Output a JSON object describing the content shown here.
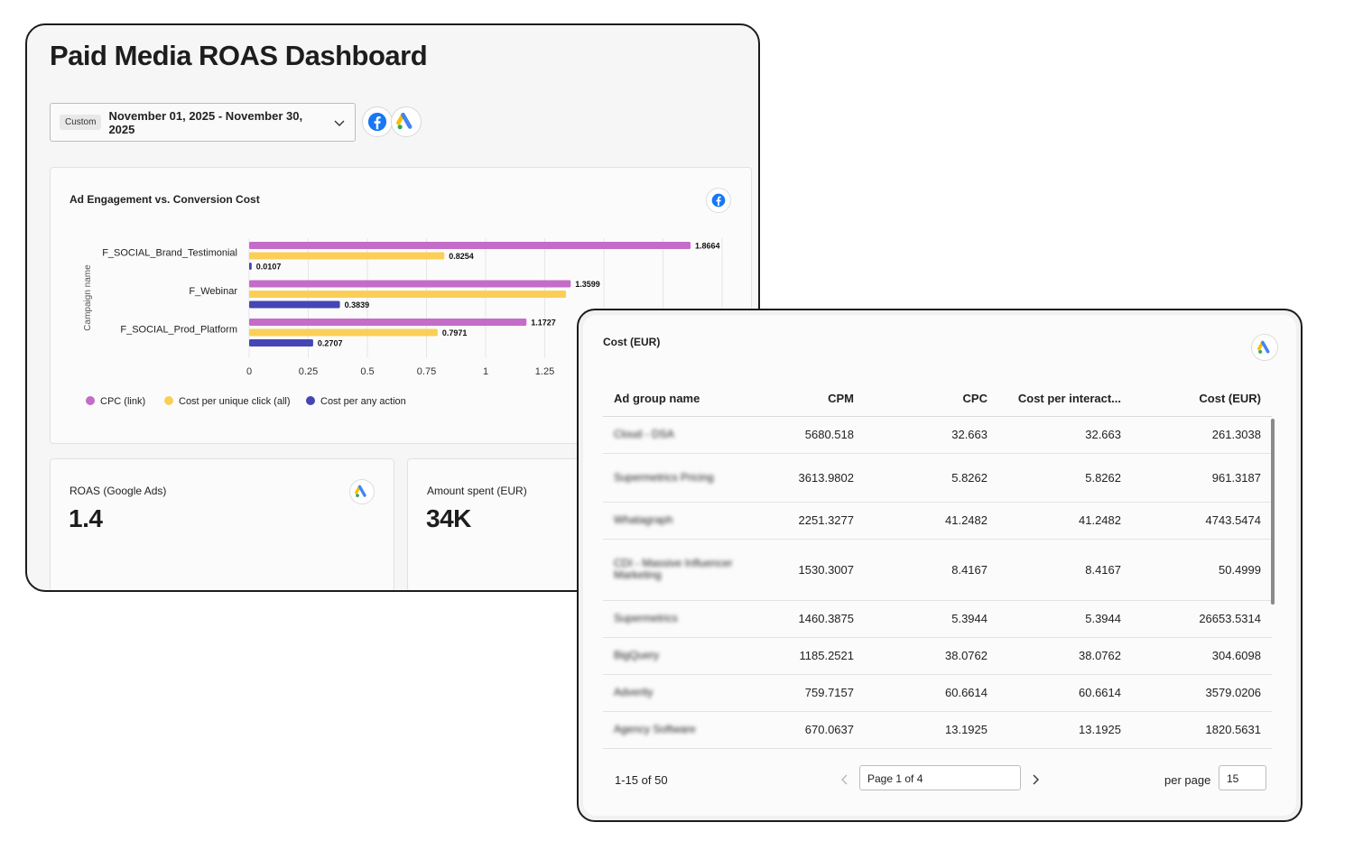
{
  "dashboard": {
    "title": "Paid Media ROAS Dashboard",
    "date_range": {
      "chip": "Custom",
      "value": "November 01, 2025 - November 30, 2025"
    },
    "sources": [
      "facebook-icon",
      "google-ads-icon"
    ],
    "chart_card": {
      "title": "Ad Engagement vs. Conversion Cost",
      "source_icon": "facebook-icon"
    },
    "kpis": [
      {
        "label": "ROAS (Google Ads)",
        "value": "1.4",
        "source_icon": "google-ads-icon"
      },
      {
        "label": "Amount spent (EUR)",
        "value": "34K"
      }
    ]
  },
  "chart_data": {
    "type": "bar",
    "orientation": "horizontal",
    "title": "Ad Engagement vs. Conversion Cost",
    "ylabel": "Campaign name",
    "categories": [
      "F_SOCIAL_Brand_Testimonial",
      "F_Webinar",
      "F_SOCIAL_Prod_Platform"
    ],
    "series": [
      {
        "name": "CPC (link)",
        "color": "#c46cc8",
        "values": [
          1.8664,
          1.3599,
          1.1727
        ],
        "labels": [
          "1.8664",
          "1.3599",
          "1.1727"
        ]
      },
      {
        "name": "Cost per unique click (all)",
        "color": "#fbcf57",
        "values": [
          0.8254,
          1.34,
          0.7971
        ],
        "labels": [
          "0.8254",
          "",
          "0.7971"
        ]
      },
      {
        "name": "Cost per any action",
        "color": "#4545b5",
        "values": [
          0.0107,
          0.3839,
          0.2707
        ],
        "labels": [
          "0.0107",
          "0.3839",
          "0.2707"
        ]
      }
    ],
    "x_ticks": [
      "0",
      "0.25",
      "0.5",
      "0.75",
      "1",
      "1.25"
    ],
    "xlim": [
      0,
      2
    ],
    "grid": true,
    "legend": "bottom-left"
  },
  "table": {
    "title": "Cost (EUR)",
    "source_icon": "google-ads-icon",
    "columns": [
      "Ad group name",
      "CPM",
      "CPC",
      "Cost per interact...",
      "Cost (EUR)"
    ],
    "rows": [
      [
        "Cloud - DSA",
        "5680.518",
        "32.663",
        "32.663",
        "261.3038"
      ],
      [
        "Supermetrics Pricing",
        "3613.9802",
        "5.8262",
        "5.8262",
        "961.3187"
      ],
      [
        "Whatagraph",
        "2251.3277",
        "41.2482",
        "41.2482",
        "4743.5474"
      ],
      [
        "CDI - Massive Influencer Marketing",
        "1530.3007",
        "8.4167",
        "8.4167",
        "50.4999"
      ],
      [
        "Supermetrics",
        "1460.3875",
        "5.3944",
        "5.3944",
        "26653.5314"
      ],
      [
        "BigQuery",
        "1185.2521",
        "38.0762",
        "38.0762",
        "304.6098"
      ],
      [
        "Adverity",
        "759.7157",
        "60.6614",
        "60.6614",
        "3579.0206"
      ],
      [
        "Agency Software",
        "670.0637",
        "13.1925",
        "13.1925",
        "1820.5631"
      ]
    ],
    "pager": {
      "range": "1-15 of 50",
      "page": "Page 1 of 4",
      "per_page_label": "per page",
      "per_page": "15"
    }
  }
}
